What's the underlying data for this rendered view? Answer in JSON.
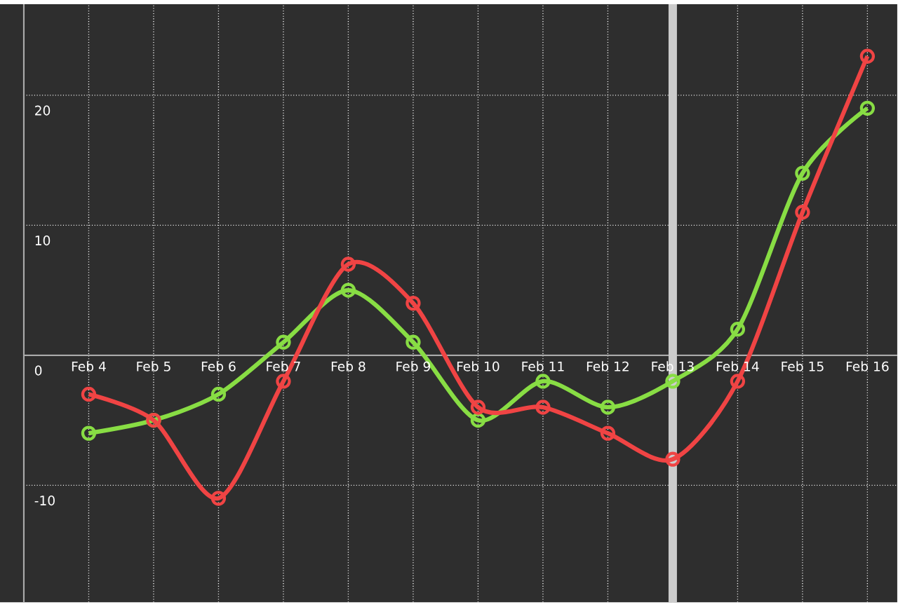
{
  "chart_data": {
    "type": "line",
    "categories": [
      "Feb 4",
      "Feb 5",
      "Feb 6",
      "Feb 7",
      "Feb 8",
      "Feb 9",
      "Feb 10",
      "Feb 11",
      "Feb 12",
      "Feb 13",
      "Feb 14",
      "Feb 15",
      "Feb 16"
    ],
    "series": [
      {
        "color": "#88dd44",
        "values": [
          -6,
          -5,
          -3,
          1,
          5,
          1,
          -5,
          -2,
          -4,
          -2,
          2,
          14,
          19
        ]
      },
      {
        "color": "#f04444",
        "values": [
          -3,
          -5,
          -11,
          -2,
          7,
          4,
          -4,
          -4,
          -6,
          -8,
          -2,
          11,
          23
        ]
      }
    ],
    "ylim": [
      -19,
      27
    ],
    "yticks": [
      -10,
      0,
      10,
      20
    ],
    "grid": true,
    "marker": "circle",
    "line_style": "solid",
    "ref_lines": [
      {
        "axis": "x",
        "value": "Feb 13",
        "color": "#cccccc"
      }
    ]
  }
}
